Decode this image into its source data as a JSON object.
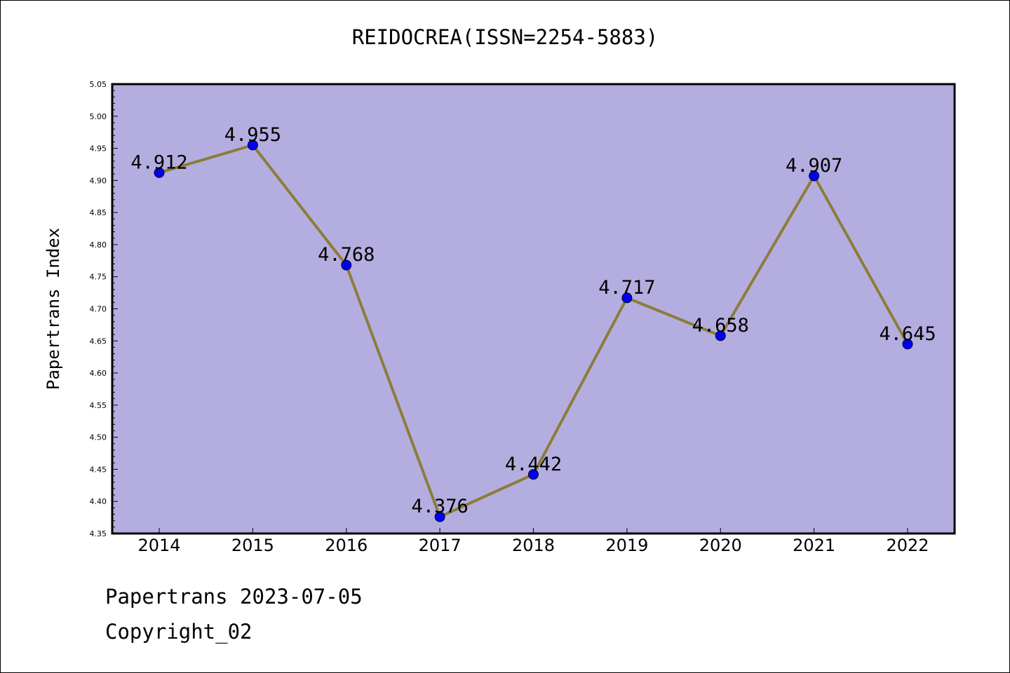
{
  "chart_data": {
    "type": "line",
    "title": "REIDOCREA(ISSN=2254-5883)",
    "xlabel": "",
    "ylabel": "Papertrans Index",
    "categories": [
      "2014",
      "2015",
      "2016",
      "2017",
      "2018",
      "2019",
      "2020",
      "2021",
      "2022"
    ],
    "series": [
      {
        "values": [
          4.912,
          4.955,
          4.768,
          4.376,
          4.442,
          4.717,
          4.658,
          4.907,
          4.645
        ]
      }
    ],
    "data_labels": [
      "4.912",
      "4.955",
      "4.768",
      "4.376",
      "4.442",
      "4.717",
      "4.658",
      "4.907",
      "4.645"
    ],
    "ylim": [
      4.35,
      5.05
    ],
    "yticks": [
      "4.35",
      "4.40",
      "4.45",
      "4.50",
      "4.55",
      "4.60",
      "4.65",
      "4.70",
      "4.75",
      "4.80",
      "4.85",
      "4.90",
      "4.95",
      "5.00",
      "5.05"
    ],
    "grid": false,
    "legend": "none",
    "colors": {
      "plot_background": "#b4aee0",
      "line": "#8b7d3a",
      "marker": "#0000ee"
    }
  },
  "footer": {
    "source_line": "Papertrans 2023-07-05",
    "copyright_line": "Copyright_02"
  }
}
